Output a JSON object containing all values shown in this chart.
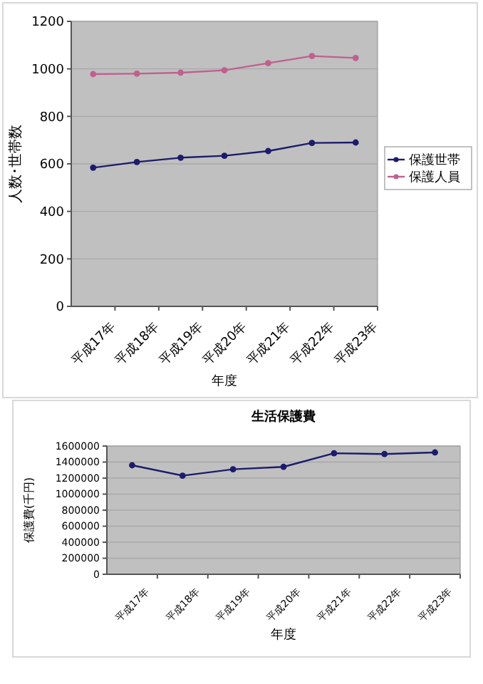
{
  "chart_data": [
    {
      "type": "line",
      "xlabel": "年度",
      "ylabel": "人数･世帯数",
      "categories": [
        "平成17年",
        "平成18年",
        "平成19年",
        "平成20年",
        "平成21年",
        "平成22年",
        "平成23年"
      ],
      "series": [
        {
          "name": "保護世帯",
          "color": "#1c1c6c",
          "values": [
            584,
            608,
            626,
            634,
            654,
            688,
            690
          ]
        },
        {
          "name": "保護人員",
          "color": "#c0608e",
          "values": [
            978,
            980,
            984,
            994,
            1024,
            1054,
            1046
          ]
        }
      ],
      "ylim": [
        0,
        1200
      ],
      "yticks": [
        0,
        200,
        400,
        600,
        800,
        1000,
        1200
      ],
      "grid": "y",
      "legend": "right",
      "marker": "circle"
    },
    {
      "type": "line",
      "title": "生活保護費",
      "xlabel": "年度",
      "ylabel": "保護費(千円)",
      "categories": [
        "平成17年",
        "平成18年",
        "平成19年",
        "平成20年",
        "平成21年",
        "平成22年",
        "平成23年"
      ],
      "series": [
        {
          "color": "#1c1c6c",
          "values": [
            1360000,
            1230000,
            1310000,
            1340000,
            1510000,
            1500000,
            1520000
          ]
        }
      ],
      "ylim": [
        0,
        1600000
      ],
      "yticks": [
        0,
        200000,
        400000,
        600000,
        800000,
        1000000,
        1200000,
        1400000,
        1600000
      ],
      "grid": "y",
      "marker": "circle"
    }
  ]
}
